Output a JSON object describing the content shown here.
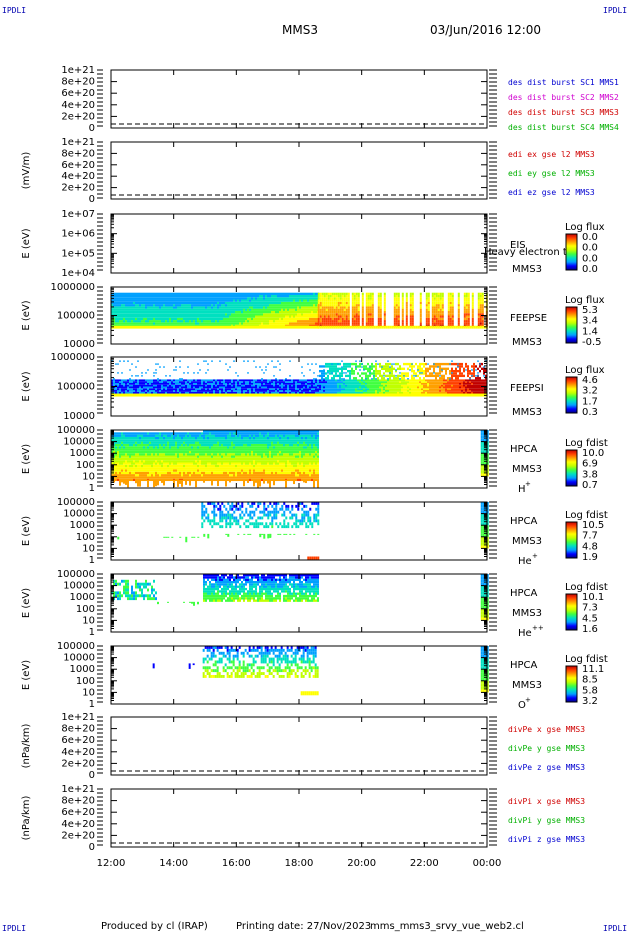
{
  "corner_label": "IPDLI",
  "header": {
    "spacecraft": "MMS3",
    "datetime": "03/Jun/2016 12:00"
  },
  "footer": {
    "produced_by": "Produced by cl (IRAP)",
    "printing_date": "Printing date: 27/Nov/2023",
    "script": "mms_mms3_srvy_vue_web2.cl"
  },
  "colors": {
    "spectrum": [
      "#000080",
      "#0000ff",
      "#00a0ff",
      "#00e0c0",
      "#40ff40",
      "#c0ff00",
      "#ffff00",
      "#ffa000",
      "#ff4000",
      "#c00000"
    ]
  },
  "chart_data": {
    "type": "heatmap",
    "x_tick_labels": [
      "12:00",
      "14:00",
      "16:00",
      "18:00",
      "20:00",
      "22:00",
      "00:00"
    ],
    "x_range_hours": [
      12,
      24
    ],
    "panels": [
      {
        "kind": "line",
        "ylabel": "",
        "ytick_labels": [
          "1e+21",
          "8e+20",
          "6e+20",
          "4e+20",
          "2e+20",
          "0"
        ],
        "ylim": [
          0,
          1e+21
        ],
        "dashed_zero": true,
        "legend": [
          {
            "text": "des dist burst SC1 MMS1",
            "color": "#0000d0"
          },
          {
            "text": "des dist burst SC2 MMS2",
            "color": "#d000d0"
          },
          {
            "text": "des dist burst SC3 MMS3",
            "color": "#d00000"
          },
          {
            "text": "des dist burst SC4 MMS4",
            "color": "#00b000"
          }
        ]
      },
      {
        "kind": "line",
        "ylabel": "(mV/m)",
        "ytick_labels": [
          "1e+21",
          "8e+20",
          "6e+20",
          "4e+20",
          "2e+20",
          "0"
        ],
        "ylim": [
          0,
          1e+21
        ],
        "dashed_zero": true,
        "legend": [
          {
            "text": "edi ex gse l2 MMS3",
            "color": "#d00000"
          },
          {
            "text": "edi ey gse l2 MMS3",
            "color": "#00b000"
          },
          {
            "text": "edi ez gse l2 MMS3",
            "color": "#0000d0"
          }
        ]
      },
      {
        "kind": "spectro",
        "ylabel": "E (eV)",
        "ytick_labels": [
          "1e+07",
          "1e+06",
          "1e+05",
          "1e+04"
        ],
        "ylim": [
          10000.0,
          10000000.0
        ],
        "log": true,
        "instrument": "EIS",
        "sc": "MMS3",
        "overlay_text": "Heavy electron to",
        "cbar_title": "Log flux",
        "cbar_labels": [
          "0.0",
          "0.0",
          "0.0",
          "0.0"
        ],
        "species": "",
        "species_sup": "",
        "data": []
      },
      {
        "kind": "spectro",
        "ylabel": "E (eV)",
        "ytick_labels": [
          "1000000",
          "100000",
          "10000"
        ],
        "ylim": [
          10000.0,
          1000000.0
        ],
        "log": true,
        "instrument": "FEEPSE",
        "sc": "MMS3",
        "overlay_text": "",
        "cbar_title": "Log flux",
        "cbar_labels": [
          "5.3",
          "3.4",
          "1.4",
          "-0.5"
        ],
        "species": "",
        "species_sup": "",
        "data": [
          {
            "t0": 12.0,
            "t1": 18.6,
            "pattern": "feepse_smooth"
          },
          {
            "t0": 18.6,
            "t1": 24.0,
            "pattern": "feepse_striped"
          }
        ]
      },
      {
        "kind": "spectro",
        "ylabel": "E (eV)",
        "ytick_labels": [
          "1000000",
          "100000",
          "10000"
        ],
        "ylim": [
          10000.0,
          1000000.0
        ],
        "log": true,
        "instrument": "FEEPSI",
        "sc": "MMS3",
        "overlay_text": "",
        "cbar_title": "Log flux",
        "cbar_labels": [
          "4.6",
          "3.2",
          "1.7",
          "0.3"
        ],
        "species": "",
        "species_sup": "",
        "data": [
          {
            "t0": 12.0,
            "t1": 24.0,
            "pattern": "feepsi"
          }
        ]
      },
      {
        "kind": "spectro",
        "ylabel": "E (eV)",
        "ytick_labels": [
          "100000",
          "10000",
          "1000",
          "100",
          "10",
          "1"
        ],
        "ylim": [
          1,
          100000.0
        ],
        "log": true,
        "instrument": "HPCA",
        "sc": "MMS3",
        "overlay_text": "",
        "cbar_title": "Log fdist",
        "cbar_labels": [
          "10.0",
          "6.9",
          "3.8",
          "0.7"
        ],
        "species": "H",
        "species_sup": "+",
        "data": [
          {
            "t0": 12.0,
            "t1": 18.6,
            "pattern": "hpca_h"
          },
          {
            "t0": 23.8,
            "t1": 24.0,
            "pattern": "edge"
          }
        ]
      },
      {
        "kind": "spectro",
        "ylabel": "E (eV)",
        "ytick_labels": [
          "100000",
          "10000",
          "1000",
          "100",
          "10",
          "1"
        ],
        "ylim": [
          1,
          100000.0
        ],
        "log": true,
        "instrument": "HPCA",
        "sc": "MMS3",
        "overlay_text": "",
        "cbar_title": "Log fdist",
        "cbar_labels": [
          "10.5",
          "7.7",
          "4.8",
          "1.9"
        ],
        "species": "He",
        "species_sup": "+",
        "data": [
          {
            "t0": 12.2,
            "t1": 18.6,
            "pattern": "hpca_sparse"
          },
          {
            "t0": 23.8,
            "t1": 24.0,
            "pattern": "edge"
          }
        ]
      },
      {
        "kind": "spectro",
        "ylabel": "E (eV)",
        "ytick_labels": [
          "100000",
          "10000",
          "1000",
          "100",
          "10",
          "1"
        ],
        "ylim": [
          1,
          100000.0
        ],
        "log": true,
        "instrument": "HPCA",
        "sc": "MMS3",
        "overlay_text": "",
        "cbar_title": "Log fdist",
        "cbar_labels": [
          "10.1",
          "7.3",
          "4.5",
          "1.6"
        ],
        "species": "He",
        "species_sup": "++",
        "data": [
          {
            "t0": 12.0,
            "t1": 18.6,
            "pattern": "hpca_hepp"
          },
          {
            "t0": 23.8,
            "t1": 24.0,
            "pattern": "edge"
          }
        ]
      },
      {
        "kind": "spectro",
        "ylabel": "E (eV)",
        "ytick_labels": [
          "100000",
          "10000",
          "1000",
          "100",
          "10",
          "1"
        ],
        "ylim": [
          1,
          100000.0
        ],
        "log": true,
        "instrument": "HPCA",
        "sc": "MMS3",
        "overlay_text": "",
        "cbar_title": "Log fdist",
        "cbar_labels": [
          "11.1",
          "8.5",
          "5.8",
          "3.2"
        ],
        "species": "O",
        "species_sup": "+",
        "data": [
          {
            "t0": 12.5,
            "t1": 18.6,
            "pattern": "hpca_o"
          },
          {
            "t0": 23.8,
            "t1": 24.0,
            "pattern": "edge"
          }
        ]
      },
      {
        "kind": "line",
        "ylabel": "(nPa/km)",
        "ytick_labels": [
          "1e+21",
          "8e+20",
          "6e+20",
          "4e+20",
          "2e+20",
          "0"
        ],
        "ylim": [
          0,
          1e+21
        ],
        "dashed_zero": true,
        "legend": [
          {
            "text": "divPe x gse MMS3",
            "color": "#d00000"
          },
          {
            "text": "divPe y gse MMS3",
            "color": "#00b000"
          },
          {
            "text": "divPe z gse MMS3",
            "color": "#0000d0"
          }
        ]
      },
      {
        "kind": "line",
        "ylabel": "(nPa/km)",
        "ytick_labels": [
          "1e+21",
          "8e+20",
          "6e+20",
          "4e+20",
          "2e+20",
          "0"
        ],
        "ylim": [
          0,
          1e+21
        ],
        "dashed_zero": true,
        "legend": [
          {
            "text": "divPi x gse MMS3",
            "color": "#d00000"
          },
          {
            "text": "divPi y gse MMS3",
            "color": "#00b000"
          },
          {
            "text": "divPi z gse MMS3",
            "color": "#0000d0"
          }
        ]
      }
    ]
  }
}
